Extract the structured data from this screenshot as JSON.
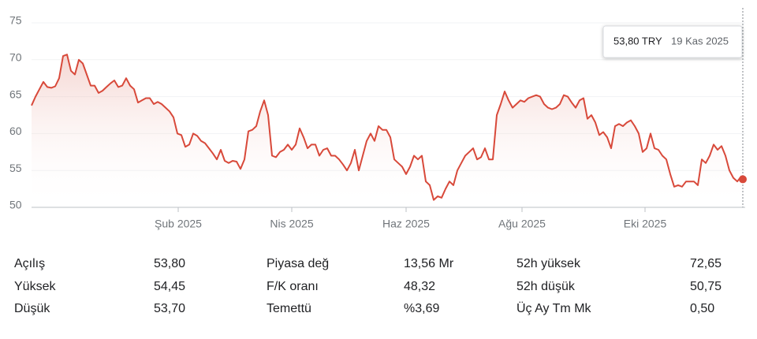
{
  "chart_data": {
    "type": "line",
    "color": "#d8493a",
    "grid": true,
    "values": [
      63.8,
      65,
      66,
      67,
      66.3,
      66.2,
      66.4,
      67.5,
      70.5,
      70.7,
      68.5,
      68,
      70,
      69.5,
      68,
      66.5,
      66.5,
      65.5,
      65.8,
      66.3,
      66.8,
      67.2,
      66.3,
      66.5,
      67.5,
      66.5,
      66,
      64.2,
      64.5,
      64.8,
      64.8,
      64,
      64.3,
      64,
      63.5,
      63,
      62.2,
      60,
      59.8,
      58.2,
      58.5,
      60,
      59.7,
      59,
      58.7,
      58,
      57.3,
      56.5,
      57.8,
      56.3,
      56,
      56.3,
      56.2,
      55.2,
      56.5,
      60.3,
      60.5,
      61,
      63,
      64.5,
      62.5,
      57,
      56.8,
      57.5,
      57.8,
      58.5,
      57.8,
      58.5,
      60.7,
      59.5,
      58,
      58.5,
      58.5,
      57,
      57.8,
      58,
      57,
      57,
      56.5,
      55.8,
      55,
      56,
      57.8,
      55,
      57,
      59,
      60,
      59,
      61,
      60.5,
      60.5,
      59.5,
      56.5,
      56,
      55.5,
      54.5,
      55.5,
      57,
      56.5,
      57,
      53.5,
      53,
      51,
      51.5,
      51.3,
      52.5,
      53.5,
      53,
      55,
      56,
      57,
      57.5,
      58,
      56.5,
      56.8,
      58,
      56.5,
      56.5,
      62.5,
      64,
      65.7,
      64.5,
      63.5,
      64,
      64.5,
      64.3,
      64.8,
      65,
      65.2,
      65,
      64,
      63.5,
      63.3,
      63.5,
      64,
      65.2,
      65,
      64.2,
      63.5,
      64.5,
      64.8,
      62,
      62.5,
      61.5,
      59.8,
      60.2,
      59.5,
      58,
      61,
      61.3,
      61,
      61.5,
      61.8,
      61,
      60,
      57.5,
      58,
      60,
      58,
      57.8,
      57,
      56.5,
      54.5,
      52.8,
      53,
      52.8,
      53.5,
      53.5,
      53.5,
      53,
      56.5,
      56,
      57,
      58.5,
      57.8,
      58.3,
      57,
      55,
      54,
      53.5,
      54.2,
      53.8
    ],
    "xlim": [
      0,
      181
    ],
    "xticks": [
      {
        "value": 37.2,
        "label": "Şub 2025"
      },
      {
        "value": 66,
        "label": "Nis 2025"
      },
      {
        "value": 95,
        "label": "Haz 2025"
      },
      {
        "value": 124.4,
        "label": "Ağu 2025"
      },
      {
        "value": 155.6,
        "label": "Eki 2025"
      }
    ],
    "ylim": [
      50,
      75
    ],
    "yticks": [
      50,
      55,
      60,
      65,
      70,
      75
    ],
    "tooltip": {
      "price": "53,80 TRY",
      "date": "19 Kas 2025"
    }
  },
  "stats": [
    [
      "Açılış",
      "53,80"
    ],
    [
      "Piyasa değ",
      "13,56 Mr"
    ],
    [
      "52h yüksek",
      "72,65"
    ],
    [
      "Yüksek",
      "54,45"
    ],
    [
      "F/K oranı",
      "48,32"
    ],
    [
      "52h düşük",
      "50,75"
    ],
    [
      "Düşük",
      "53,70"
    ],
    [
      "Temettü",
      "%3,69"
    ],
    [
      "Üç Ay Tm Mk",
      "0,50"
    ]
  ]
}
